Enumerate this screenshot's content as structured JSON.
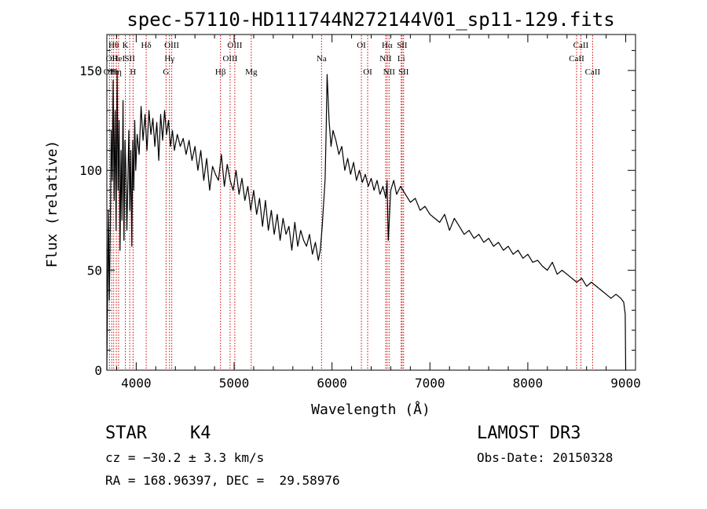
{
  "chart_data": {
    "type": "line",
    "title": "spec-57110-HD111744N272144V01_sp11-129.fits",
    "xlabel": "Wavelength (Å)",
    "ylabel": "Flux (relative)",
    "xlim": [
      3700,
      9100
    ],
    "ylim": [
      0,
      168
    ],
    "x_ticks": [
      4000,
      5000,
      6000,
      7000,
      8000,
      9000
    ],
    "x_tick_labels": [
      "4000",
      "5000",
      "6000",
      "7000",
      "8000",
      "9000"
    ],
    "y_ticks": [
      0,
      50,
      100,
      150
    ],
    "y_tick_labels": [
      "0",
      "50",
      "100",
      "150"
    ],
    "grid": false,
    "series": [
      {
        "name": "flux",
        "x": [
          3700,
          3715,
          3725,
          3735,
          3745,
          3755,
          3765,
          3775,
          3785,
          3795,
          3805,
          3815,
          3825,
          3835,
          3845,
          3855,
          3865,
          3875,
          3885,
          3895,
          3905,
          3915,
          3925,
          3935,
          3945,
          3955,
          3965,
          3975,
          3985,
          3995,
          4010,
          4030,
          4050,
          4070,
          4090,
          4110,
          4130,
          4150,
          4170,
          4190,
          4210,
          4230,
          4250,
          4270,
          4290,
          4310,
          4330,
          4350,
          4370,
          4390,
          4420,
          4450,
          4480,
          4510,
          4540,
          4570,
          4600,
          4630,
          4660,
          4690,
          4720,
          4750,
          4780,
          4810,
          4840,
          4870,
          4900,
          4930,
          4960,
          4990,
          5020,
          5050,
          5080,
          5110,
          5140,
          5170,
          5200,
          5230,
          5260,
          5290,
          5320,
          5350,
          5380,
          5410,
          5440,
          5470,
          5500,
          5530,
          5560,
          5590,
          5620,
          5650,
          5680,
          5710,
          5740,
          5770,
          5800,
          5830,
          5860,
          5880,
          5900,
          5910,
          5920,
          5930,
          5940,
          5950,
          5970,
          5990,
          6010,
          6040,
          6070,
          6100,
          6130,
          6160,
          6190,
          6220,
          6250,
          6280,
          6310,
          6340,
          6370,
          6400,
          6430,
          6460,
          6490,
          6520,
          6550,
          6562,
          6575,
          6600,
          6630,
          6660,
          6700,
          6750,
          6800,
          6850,
          6900,
          6950,
          7000,
          7050,
          7100,
          7150,
          7200,
          7250,
          7300,
          7350,
          7400,
          7450,
          7500,
          7550,
          7600,
          7650,
          7700,
          7750,
          7800,
          7850,
          7900,
          7950,
          8000,
          8050,
          8100,
          8150,
          8200,
          8250,
          8300,
          8350,
          8400,
          8450,
          8500,
          8550,
          8600,
          8650,
          8700,
          8750,
          8800,
          8850,
          8900,
          8950,
          8980,
          8995,
          9000
        ],
        "values": [
          0,
          80,
          35,
          70,
          120,
          95,
          145,
          85,
          130,
          70,
          150,
          90,
          125,
          60,
          110,
          75,
          135,
          65,
          115,
          100,
          70,
          95,
          120,
          80,
          110,
          62,
          115,
          90,
          125,
          100,
          118,
          108,
          132,
          115,
          128,
          110,
          130,
          118,
          126,
          112,
          124,
          105,
          128,
          115,
          130,
          118,
          125,
          112,
          120,
          110,
          118,
          112,
          116,
          108,
          115,
          105,
          112,
          100,
          110,
          95,
          106,
          90,
          102,
          98,
          95,
          108,
          92,
          103,
          95,
          90,
          100,
          88,
          96,
          85,
          92,
          80,
          90,
          78,
          86,
          72,
          85,
          70,
          80,
          68,
          78,
          65,
          76,
          68,
          72,
          60,
          74,
          62,
          70,
          65,
          62,
          68,
          58,
          64,
          55,
          60,
          72,
          80,
          88,
          96,
          120,
          148,
          125,
          112,
          120,
          115,
          108,
          112,
          100,
          106,
          98,
          104,
          95,
          100,
          94,
          98,
          92,
          96,
          90,
          95,
          88,
          92,
          86,
          95,
          65,
          90,
          95,
          88,
          92,
          88,
          84,
          86,
          80,
          82,
          78,
          76,
          74,
          78,
          70,
          76,
          72,
          68,
          70,
          66,
          68,
          64,
          66,
          62,
          64,
          60,
          62,
          58,
          60,
          56,
          58,
          54,
          55,
          52,
          50,
          54,
          48,
          50,
          48,
          46,
          44,
          46,
          42,
          44,
          42,
          40,
          38,
          36,
          38,
          36,
          34,
          28,
          0
        ]
      }
    ],
    "line_markers": [
      {
        "x": 3727,
        "labels": [
          "OII"
        ],
        "row": 2
      },
      {
        "x": 3750,
        "labels": [
          "OII"
        ],
        "row": 1
      },
      {
        "x": 3770,
        "labels": [
          "Hθ"
        ],
        "row": 0
      },
      {
        "x": 3797,
        "labels": [
          "Hη"
        ],
        "row": 2
      },
      {
        "x": 3820,
        "labels": [
          "HeI"
        ],
        "row": 1
      },
      {
        "x": 3889,
        "labels": [
          "K"
        ],
        "row": 0
      },
      {
        "x": 3934,
        "labels": [
          "SII"
        ],
        "row": 1
      },
      {
        "x": 3968,
        "labels": [
          "H"
        ],
        "row": 2
      },
      {
        "x": 4102,
        "labels": [
          "Hδ"
        ],
        "row": 0
      },
      {
        "x": 4305,
        "labels": [
          "G"
        ],
        "row": 2
      },
      {
        "x": 4340,
        "labels": [
          "Hγ"
        ],
        "row": 1
      },
      {
        "x": 4363,
        "labels": [
          "OIII"
        ],
        "row": 0
      },
      {
        "x": 4861,
        "labels": [
          "Hβ"
        ],
        "row": 2
      },
      {
        "x": 4959,
        "labels": [
          "OIII"
        ],
        "row": 1
      },
      {
        "x": 5007,
        "labels": [
          "OIII"
        ],
        "row": 0
      },
      {
        "x": 5175,
        "labels": [
          "Mg"
        ],
        "row": 2
      },
      {
        "x": 5893,
        "labels": [
          "Na"
        ],
        "row": 1
      },
      {
        "x": 6300,
        "labels": [
          "OI"
        ],
        "row": 0
      },
      {
        "x": 6364,
        "labels": [
          "OI"
        ],
        "row": 2
      },
      {
        "x": 6548,
        "labels": [
          "NII"
        ],
        "row": 1
      },
      {
        "x": 6563,
        "labels": [
          "Hα"
        ],
        "row": 0
      },
      {
        "x": 6583,
        "labels": [
          "NII"
        ],
        "row": 2
      },
      {
        "x": 6707,
        "labels": [
          "Li"
        ],
        "row": 1
      },
      {
        "x": 6716,
        "labels": [
          "SII"
        ],
        "row": 0
      },
      {
        "x": 6731,
        "labels": [
          "SII"
        ],
        "row": 2
      },
      {
        "x": 8498,
        "labels": [
          "CaII"
        ],
        "row": 1
      },
      {
        "x": 8542,
        "labels": [
          "CaII"
        ],
        "row": 0
      },
      {
        "x": 8662,
        "labels": [
          "CaII"
        ],
        "row": 2
      }
    ]
  },
  "info": {
    "object_class": "STAR",
    "subclass": "K4",
    "survey": "LAMOST DR3",
    "cz": "cz = −30.2 ± 3.3 km/s",
    "obs_date": "Obs-Date: 20150328",
    "coords": "RA = 168.96397, DEC =  29.58976"
  }
}
